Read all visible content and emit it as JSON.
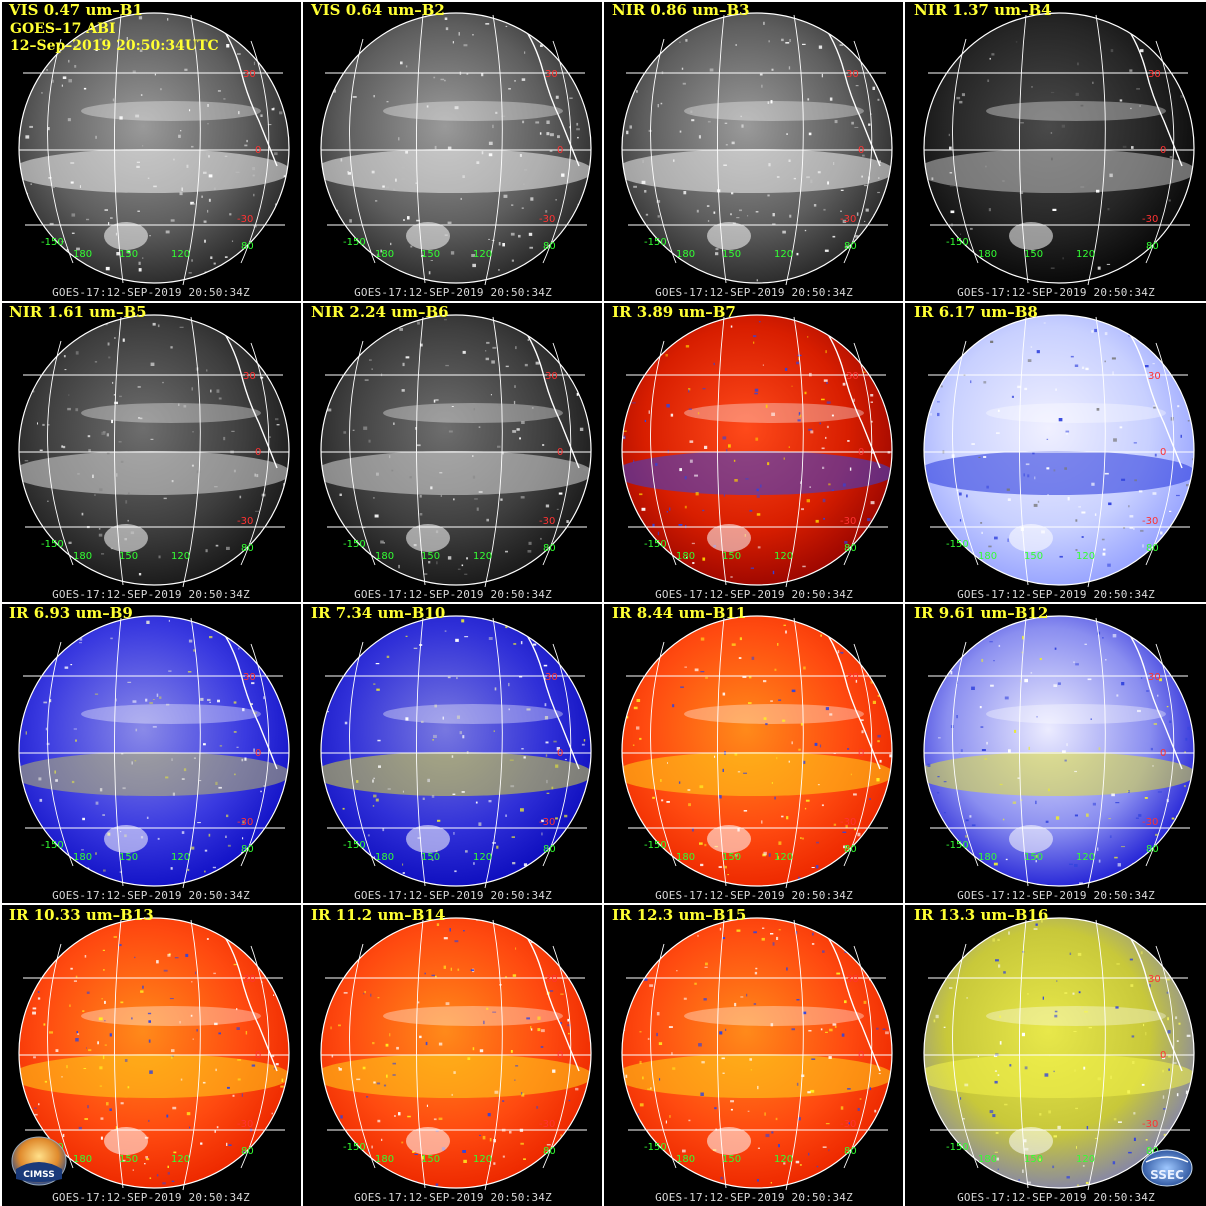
{
  "header": {
    "band_title": "VIS 0.47 um–B1",
    "satellite": "GOES–17 ABI",
    "timestamp": "12–Sep–2019 20:50:34UTC"
  },
  "footer_text": "GOES-17:12-SEP-2019 20:50:34Z",
  "lat_labels": [
    "30",
    "0",
    "-30"
  ],
  "lon_labels": [
    "-150",
    "180",
    "150",
    "120",
    "80"
  ],
  "panels": [
    {
      "title": "VIS 0.47 um–B1",
      "scheme": "vis_bright"
    },
    {
      "title": "VIS 0.64 um–B2",
      "scheme": "vis_bright"
    },
    {
      "title": "NIR 0.86 um–B3",
      "scheme": "vis_bright"
    },
    {
      "title": "NIR 1.37 um–B4",
      "scheme": "nir_dark"
    },
    {
      "title": "NIR 1.61 um–B5",
      "scheme": "nir_mid"
    },
    {
      "title": "NIR 2.24 um–B6",
      "scheme": "nir_mid"
    },
    {
      "title": "IR 3.89 um–B7",
      "scheme": "ir_red"
    },
    {
      "title": "IR 6.17 um–B8",
      "scheme": "wv_light"
    },
    {
      "title": "IR 6.93 um–B9",
      "scheme": "wv_blue"
    },
    {
      "title": "IR 7.34 um–B10",
      "scheme": "wv_yellow"
    },
    {
      "title": "IR 8.44 um–B11",
      "scheme": "ir_orange"
    },
    {
      "title": "IR 9.61 um–B12",
      "scheme": "ozone"
    },
    {
      "title": "IR 10.33 um–B13",
      "scheme": "ir_orange"
    },
    {
      "title": "IR 11.2 um–B14",
      "scheme": "ir_orange"
    },
    {
      "title": "IR 12.3 um–B15",
      "scheme": "ir_orange"
    },
    {
      "title": "IR 13.3 um–B16",
      "scheme": "co2"
    }
  ],
  "logos": {
    "left": "CIMSS",
    "right": "SSEC"
  },
  "colors": {
    "title": "#ffff33",
    "lat_label": "#ff3333",
    "lon_label": "#33ff33",
    "grid": "#ffffff"
  }
}
